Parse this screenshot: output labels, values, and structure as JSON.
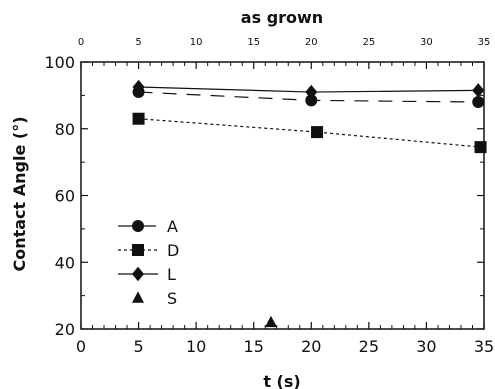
{
  "chart_data": {
    "type": "scatter",
    "title": "as grown",
    "xlabel": "t (s)",
    "ylabel": "Contact Angle (°)",
    "xlim": [
      0,
      35
    ],
    "ylim": [
      20,
      100
    ],
    "x_ticks": [
      0,
      5,
      10,
      15,
      20,
      25,
      30,
      35
    ],
    "y_ticks": [
      20,
      40,
      60,
      80,
      100
    ],
    "top_axis_ticks": [
      0,
      5,
      10,
      15,
      20,
      25,
      30,
      35
    ],
    "legend_position": "bottom-left",
    "grid": false,
    "series": [
      {
        "name": "A",
        "marker": "circle",
        "line": "dashed",
        "points": [
          {
            "x": 5,
            "y": 91
          },
          {
            "x": 20,
            "y": 88.5
          },
          {
            "x": 34.5,
            "y": 88
          }
        ]
      },
      {
        "name": "D",
        "marker": "square",
        "line": "dotted",
        "points": [
          {
            "x": 5,
            "y": 83
          },
          {
            "x": 20.5,
            "y": 79
          },
          {
            "x": 34.7,
            "y": 74.5
          }
        ]
      },
      {
        "name": "L",
        "marker": "diamond",
        "line": "solid",
        "points": [
          {
            "x": 5,
            "y": 92.5
          },
          {
            "x": 20,
            "y": 91
          },
          {
            "x": 34.5,
            "y": 91.5
          }
        ]
      },
      {
        "name": "S",
        "marker": "triangle",
        "line": "none",
        "points": [
          {
            "x": 16.5,
            "y": 22
          }
        ]
      }
    ]
  }
}
